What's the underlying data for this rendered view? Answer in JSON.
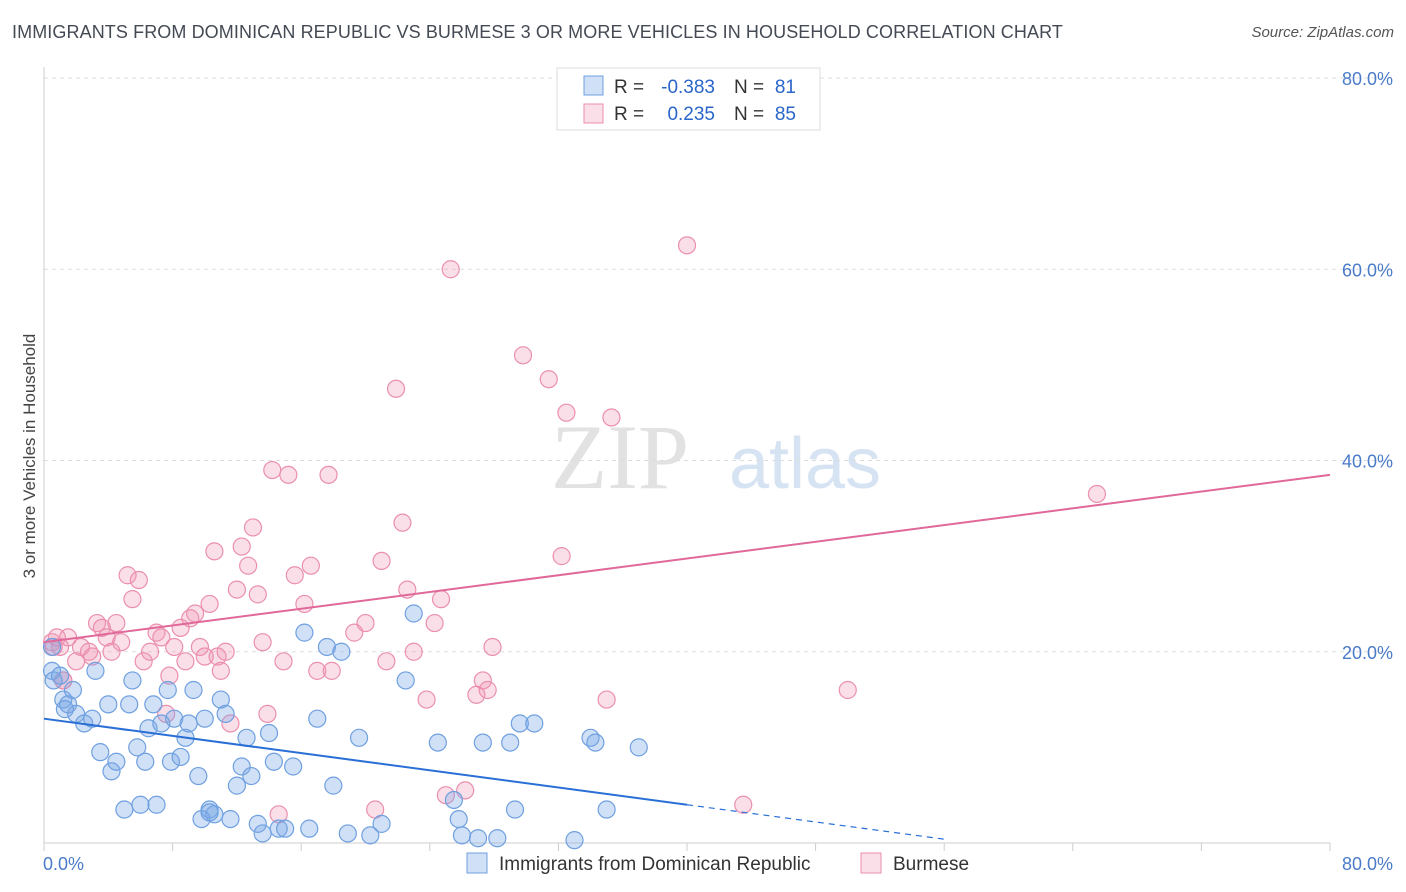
{
  "title": "IMMIGRANTS FROM DOMINICAN REPUBLIC VS BURMESE 3 OR MORE VEHICLES IN HOUSEHOLD CORRELATION CHART",
  "source": "Source: ZipAtlas.com",
  "watermark": {
    "zip": "ZIP",
    "atlas": "atlas"
  },
  "colors": {
    "blue": "#6fa0e0",
    "blue_fill": "rgba(120,165,230,0.35)",
    "blue_line": "#2a6fd6",
    "pink": "#eb8fae",
    "pink_fill": "rgba(240,150,180,0.30)",
    "pink_line": "#e0689a",
    "tick_text": "#4a7bc8",
    "grid": "#dddddd"
  },
  "legend": {
    "rows": [
      {
        "r_label": "R =",
        "r_value": "-0.383",
        "n_label": "N =",
        "n_value": "81",
        "series": "blue"
      },
      {
        "r_label": "R =",
        "r_value": "0.235",
        "n_label": "N =",
        "n_value": "85",
        "series": "pink"
      }
    ]
  },
  "chart_data": {
    "type": "scatter",
    "title": "IMMIGRANTS FROM DOMINICAN REPUBLIC VS BURMESE 3 OR MORE VEHICLES IN HOUSEHOLD CORRELATION CHART",
    "xlabel": "",
    "ylabel": "3 or more Vehicles in Household",
    "xlim": [
      0,
      80
    ],
    "ylim": [
      0,
      80
    ],
    "x_tick_labels": [
      {
        "value": 0,
        "label": "0.0%"
      },
      {
        "value": 80,
        "label": "80.0%"
      }
    ],
    "y_tick_labels": [
      {
        "value": 20,
        "label": "20.0%"
      },
      {
        "value": 40,
        "label": "40.0%"
      },
      {
        "value": 60,
        "label": "60.0%"
      },
      {
        "value": 80,
        "label": "80.0%"
      }
    ],
    "grid": "horizontal dashed",
    "legend_position": "top-center",
    "series": [
      {
        "name": "Immigrants from Dominican Republic",
        "color": "blue",
        "trend": {
          "x": [
            0,
            40
          ],
          "y": [
            13.0,
            4.0
          ],
          "dashed_extension": {
            "x": [
              40,
              56
            ],
            "y": [
              4.0,
              0.4
            ]
          }
        },
        "points": [
          [
            0.5,
            20.5
          ],
          [
            0.5,
            18.0
          ],
          [
            0.6,
            17.0
          ],
          [
            1.0,
            17.5
          ],
          [
            1.2,
            15.0
          ],
          [
            1.5,
            14.5
          ],
          [
            1.8,
            16.0
          ],
          [
            2.0,
            13.5
          ],
          [
            2.5,
            12.5
          ],
          [
            3.0,
            13.0
          ],
          [
            3.2,
            18.0
          ],
          [
            3.5,
            9.5
          ],
          [
            4.0,
            14.5
          ],
          [
            4.2,
            7.5
          ],
          [
            4.5,
            8.5
          ],
          [
            5.0,
            3.5
          ],
          [
            5.3,
            14.5
          ],
          [
            5.5,
            17.0
          ],
          [
            5.8,
            10.0
          ],
          [
            6.0,
            4.0
          ],
          [
            6.3,
            8.5
          ],
          [
            6.5,
            12.0
          ],
          [
            6.8,
            14.5
          ],
          [
            7.0,
            4.0
          ],
          [
            7.3,
            12.5
          ],
          [
            7.7,
            16.0
          ],
          [
            7.9,
            8.5
          ],
          [
            8.1,
            13.0
          ],
          [
            8.5,
            9.0
          ],
          [
            8.8,
            11.0
          ],
          [
            9.0,
            12.5
          ],
          [
            9.3,
            16.0
          ],
          [
            9.6,
            7.0
          ],
          [
            9.8,
            2.5
          ],
          [
            10.0,
            13.0
          ],
          [
            10.3,
            3.5
          ],
          [
            10.6,
            3.0
          ],
          [
            11.0,
            15.0
          ],
          [
            11.3,
            13.5
          ],
          [
            11.6,
            2.5
          ],
          [
            12.0,
            6.0
          ],
          [
            12.3,
            8.0
          ],
          [
            12.6,
            11.0
          ],
          [
            12.9,
            7.0
          ],
          [
            13.3,
            2.0
          ],
          [
            13.6,
            1.0
          ],
          [
            14.0,
            11.5
          ],
          [
            14.3,
            8.5
          ],
          [
            14.6,
            1.5
          ],
          [
            15.0,
            1.5
          ],
          [
            15.5,
            8.0
          ],
          [
            16.2,
            22.0
          ],
          [
            16.5,
            1.5
          ],
          [
            17.0,
            13.0
          ],
          [
            17.6,
            20.5
          ],
          [
            18.0,
            6.0
          ],
          [
            18.5,
            20.0
          ],
          [
            18.9,
            1.0
          ],
          [
            19.6,
            11.0
          ],
          [
            20.3,
            0.8
          ],
          [
            21.0,
            2.0
          ],
          [
            22.5,
            17.0
          ],
          [
            23.0,
            24.0
          ],
          [
            24.5,
            10.5
          ],
          [
            25.5,
            4.5
          ],
          [
            25.8,
            2.5
          ],
          [
            26.0,
            0.8
          ],
          [
            27.0,
            0.5
          ],
          [
            27.3,
            10.5
          ],
          [
            28.2,
            0.5
          ],
          [
            29.0,
            10.5
          ],
          [
            29.3,
            3.5
          ],
          [
            29.6,
            12.5
          ],
          [
            30.5,
            12.5
          ],
          [
            33.0,
            0.3
          ],
          [
            34.0,
            11.0
          ],
          [
            34.3,
            10.5
          ],
          [
            35.0,
            3.5
          ],
          [
            37.0,
            10.0
          ],
          [
            10.3,
            3.2
          ],
          [
            1.3,
            14.0
          ]
        ]
      },
      {
        "name": "Burmese",
        "color": "pink",
        "trend": {
          "x": [
            0,
            80
          ],
          "y": [
            21.0,
            38.5
          ]
        },
        "points": [
          [
            0.5,
            21.0
          ],
          [
            0.6,
            20.5
          ],
          [
            0.8,
            21.5
          ],
          [
            1.0,
            20.5
          ],
          [
            1.2,
            17.0
          ],
          [
            1.5,
            21.5
          ],
          [
            2.0,
            19.0
          ],
          [
            2.3,
            20.5
          ],
          [
            2.8,
            20.0
          ],
          [
            3.0,
            19.5
          ],
          [
            3.3,
            23.0
          ],
          [
            3.6,
            22.5
          ],
          [
            3.9,
            21.5
          ],
          [
            4.2,
            20.0
          ],
          [
            4.5,
            23.0
          ],
          [
            4.8,
            21.0
          ],
          [
            5.2,
            28.0
          ],
          [
            5.5,
            25.5
          ],
          [
            5.9,
            27.5
          ],
          [
            6.2,
            19.0
          ],
          [
            6.6,
            20.0
          ],
          [
            7.0,
            22.0
          ],
          [
            7.3,
            21.5
          ],
          [
            7.6,
            13.5
          ],
          [
            7.8,
            17.5
          ],
          [
            8.1,
            20.5
          ],
          [
            8.5,
            22.5
          ],
          [
            8.8,
            19.0
          ],
          [
            9.1,
            23.5
          ],
          [
            9.4,
            24.0
          ],
          [
            9.7,
            20.5
          ],
          [
            10.0,
            19.5
          ],
          [
            10.3,
            25.0
          ],
          [
            10.6,
            30.5
          ],
          [
            10.8,
            19.5
          ],
          [
            11.0,
            18.0
          ],
          [
            11.3,
            20.0
          ],
          [
            11.6,
            12.5
          ],
          [
            12.0,
            26.5
          ],
          [
            12.3,
            31.0
          ],
          [
            12.7,
            29.0
          ],
          [
            13.0,
            33.0
          ],
          [
            13.3,
            26.0
          ],
          [
            13.6,
            21.0
          ],
          [
            13.9,
            13.5
          ],
          [
            14.2,
            39.0
          ],
          [
            14.6,
            3.0
          ],
          [
            14.9,
            19.0
          ],
          [
            15.2,
            38.5
          ],
          [
            15.6,
            28.0
          ],
          [
            16.2,
            25.0
          ],
          [
            16.6,
            29.0
          ],
          [
            17.0,
            18.0
          ],
          [
            17.7,
            38.5
          ],
          [
            17.9,
            18.0
          ],
          [
            19.3,
            22.0
          ],
          [
            20.0,
            23.0
          ],
          [
            20.6,
            3.5
          ],
          [
            21.0,
            29.5
          ],
          [
            21.3,
            19.0
          ],
          [
            21.9,
            47.5
          ],
          [
            22.3,
            33.5
          ],
          [
            22.6,
            26.5
          ],
          [
            23.0,
            20.0
          ],
          [
            23.8,
            15.0
          ],
          [
            24.3,
            23.0
          ],
          [
            24.7,
            25.5
          ],
          [
            25.0,
            5.0
          ],
          [
            25.3,
            60.0
          ],
          [
            26.2,
            5.5
          ],
          [
            26.9,
            15.5
          ],
          [
            27.3,
            17.0
          ],
          [
            27.6,
            16.0
          ],
          [
            27.9,
            20.5
          ],
          [
            29.8,
            51.0
          ],
          [
            31.4,
            48.5
          ],
          [
            32.2,
            30.0
          ],
          [
            32.5,
            45.0
          ],
          [
            35.0,
            15.0
          ],
          [
            35.3,
            44.5
          ],
          [
            40.0,
            62.5
          ],
          [
            43.5,
            4.0
          ],
          [
            50.0,
            16.0
          ],
          [
            65.5,
            36.5
          ],
          [
            1.2,
            17.0
          ]
        ]
      }
    ]
  }
}
